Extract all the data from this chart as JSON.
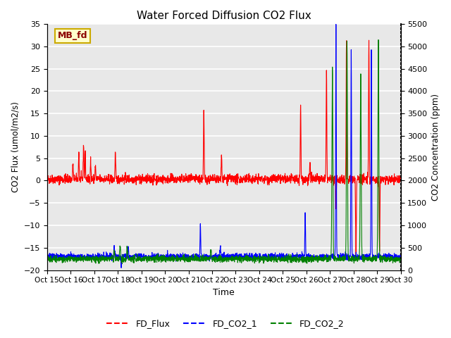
{
  "title": "Water Forced Diffusion CO2 Flux",
  "xlabel": "Time",
  "ylabel_left": "CO2 Flux (umol/m2/s)",
  "ylabel_right": "CO2 Concentration (ppm)",
  "ylim_left": [
    -20,
    35
  ],
  "ylim_right": [
    0,
    5500
  ],
  "yticks_left": [
    -20,
    -15,
    -10,
    -5,
    0,
    5,
    10,
    15,
    20,
    25,
    30,
    35
  ],
  "yticks_right": [
    0,
    500,
    1000,
    1500,
    2000,
    2500,
    3000,
    3500,
    4000,
    4500,
    5000,
    5500
  ],
  "xtick_labels": [
    "Oct 15",
    "Oct 16",
    "Oct 17",
    "Oct 18",
    "Oct 19",
    "Oct 20",
    "Oct 21",
    "Oct 22",
    "Oct 23",
    "Oct 24",
    "Oct 25",
    "Oct 26",
    "Oct 27",
    "Oct 28",
    "Oct 29",
    "Oct 30"
  ],
  "legend_labels": [
    "FD_Flux",
    "FD_CO2_1",
    "FD_CO2_2"
  ],
  "line_colors": {
    "FD_Flux": "red",
    "FD_CO2_1": "blue",
    "FD_CO2_2": "green"
  },
  "background_color": "#ffffff",
  "plot_bg_color": "#e8e8e8",
  "grid_color": "white",
  "label_box_color": "#ffffcc",
  "label_box_text": "MB_fd",
  "label_box_text_color": "darkred",
  "n_points": 2160,
  "seed": 42
}
